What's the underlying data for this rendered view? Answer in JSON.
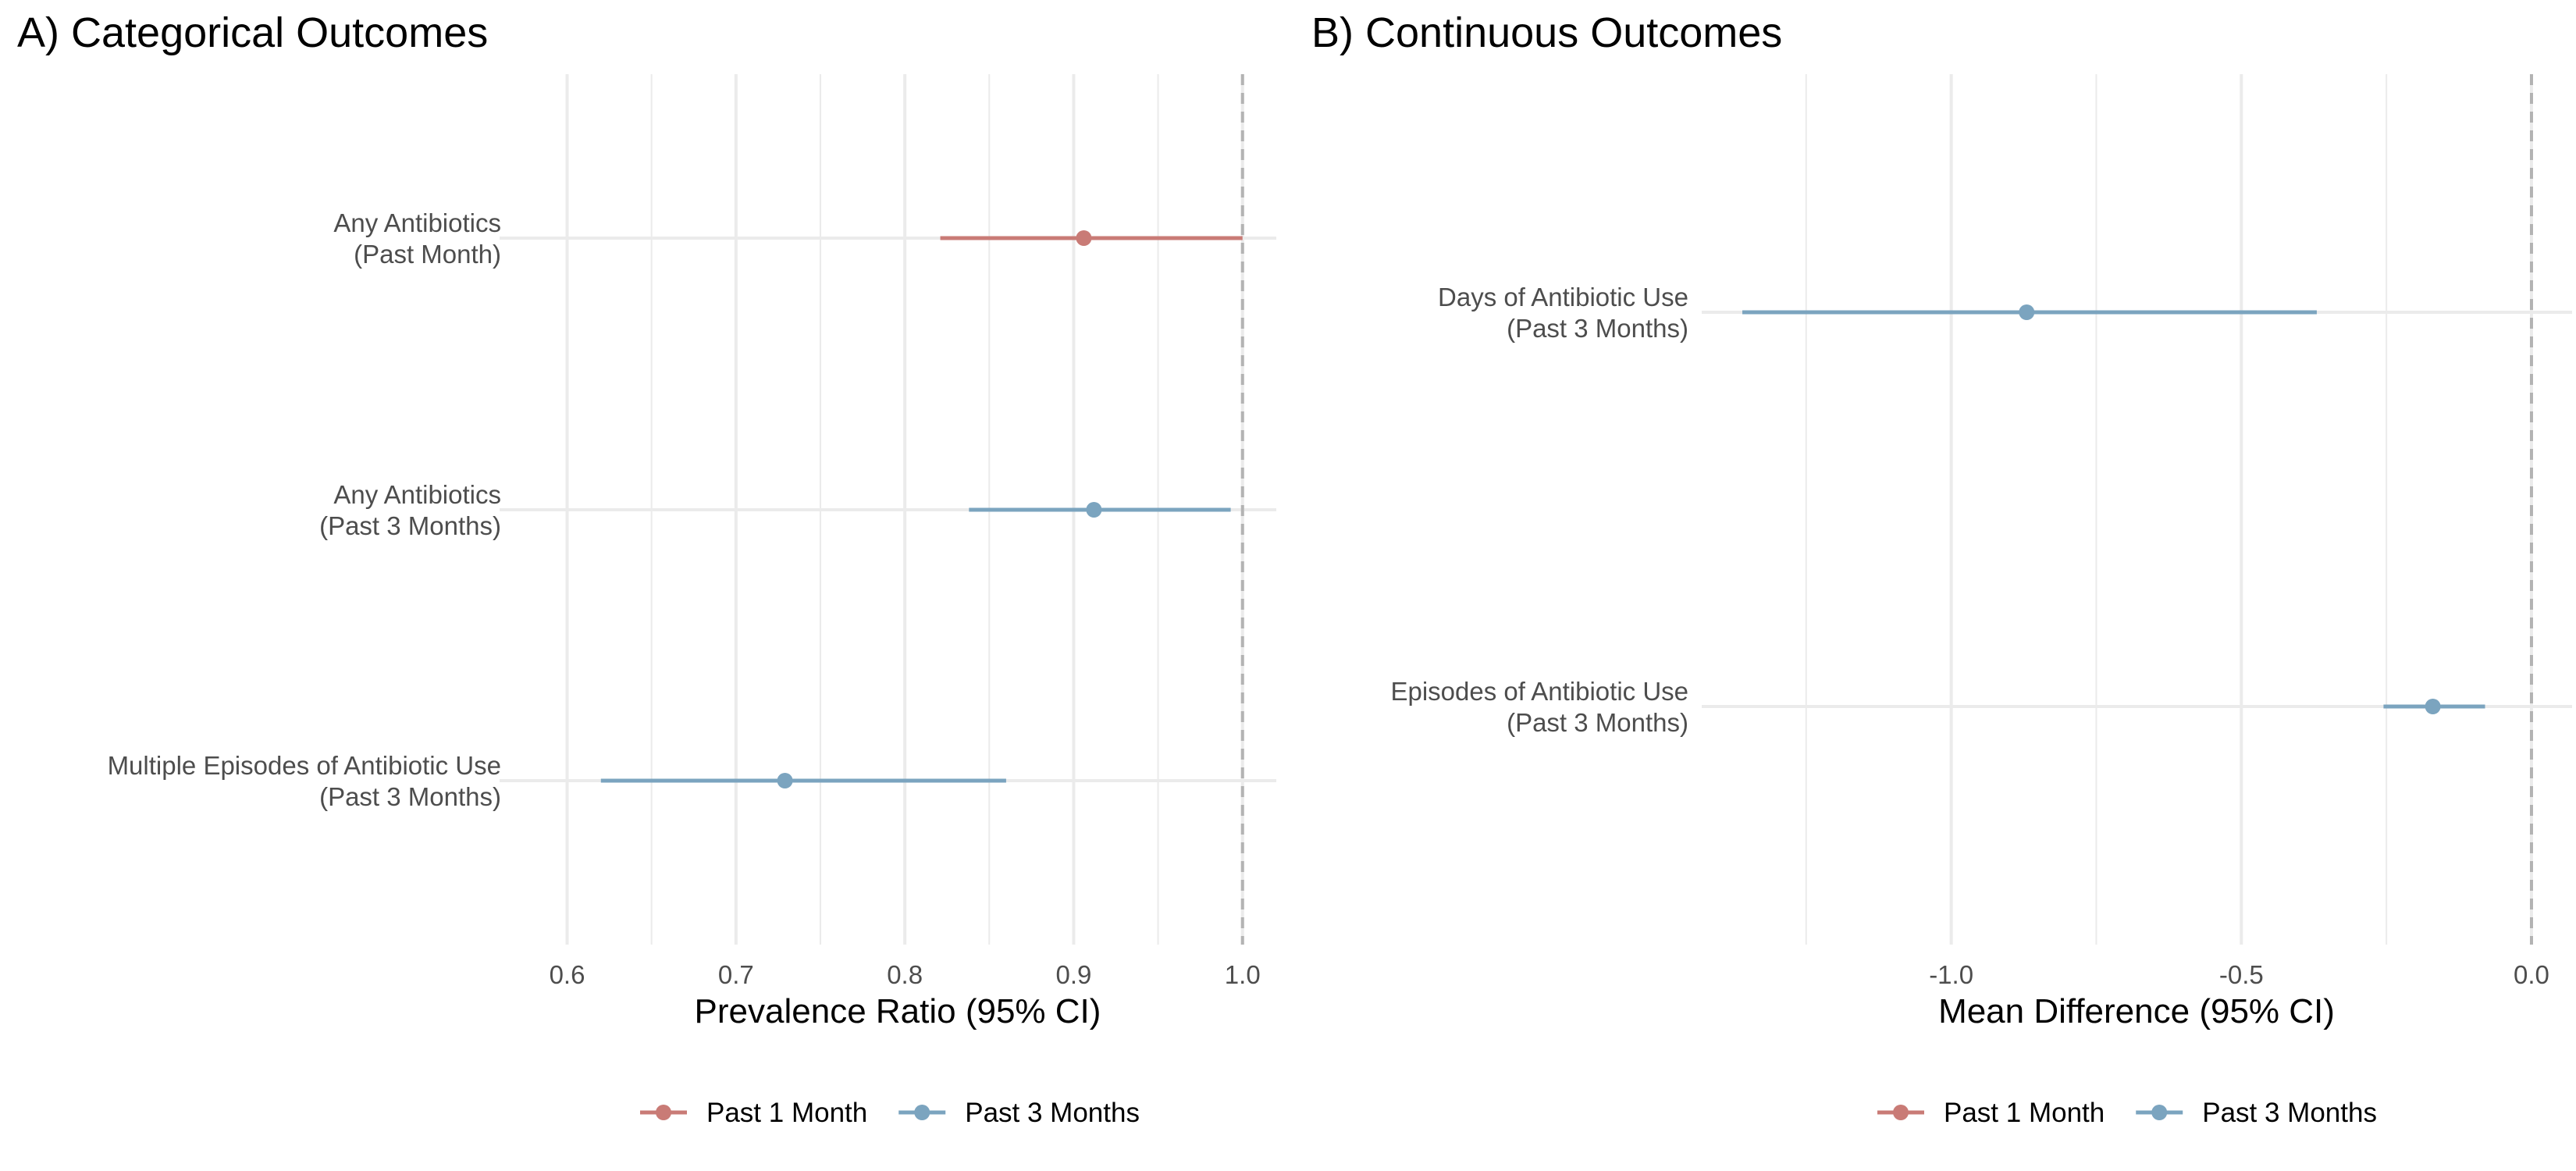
{
  "chart_data": [
    {
      "type": "forest",
      "title": "A) Categorical Outcomes",
      "xlabel": "Prevalence Ratio (95% CI)",
      "xlim": [
        0.6,
        1.0
      ],
      "xticks": [
        "0.6",
        "0.7",
        "0.8",
        "0.9",
        "1.0"
      ],
      "reference_line": 1.0,
      "grid": true,
      "categories": [
        [
          "Any Antibiotics",
          "(Past Month)"
        ],
        [
          "Any Antibiotics",
          "(Past 3 Months)"
        ],
        [
          "Multiple Episodes of Antibiotic Use",
          "(Past 3 Months)"
        ]
      ],
      "points": [
        {
          "category": 0,
          "series": "Past 1 Month",
          "estimate": 0.906,
          "lower": 0.821,
          "upper": 1.0
        },
        {
          "category": 1,
          "series": "Past 3 Months",
          "estimate": 0.912,
          "lower": 0.838,
          "upper": 0.993
        },
        {
          "category": 2,
          "series": "Past 3 Months",
          "estimate": 0.729,
          "lower": 0.62,
          "upper": 0.86
        }
      ],
      "legend": {
        "position": "bottom",
        "items": [
          "Past 1 Month",
          "Past 3 Months"
        ]
      }
    },
    {
      "type": "forest",
      "title": "B) Continuous Outcomes",
      "xlabel": "Mean Difference (95% CI)",
      "xlim": [
        -1.0,
        0.0
      ],
      "xticks": [
        "-1.0",
        "-0.5",
        "0.0"
      ],
      "reference_line": 0.0,
      "grid": true,
      "categories": [
        [
          "Days of Antibiotic Use",
          "(Past 3 Months)"
        ],
        [
          "Episodes of Antibiotic Use",
          "(Past 3 Months)"
        ]
      ],
      "points": [
        {
          "category": 0,
          "series": "Past 3 Months",
          "estimate": -0.87,
          "lower": -1.36,
          "upper": -0.37
        },
        {
          "category": 1,
          "series": "Past 3 Months",
          "estimate": -0.17,
          "lower": -0.255,
          "upper": -0.08
        }
      ],
      "legend": {
        "position": "bottom",
        "items": [
          "Past 1 Month",
          "Past 3 Months"
        ]
      }
    }
  ],
  "colors": {
    "Past 1 Month": "#c97b76",
    "Past 3 Months": "#7ba4bf"
  }
}
